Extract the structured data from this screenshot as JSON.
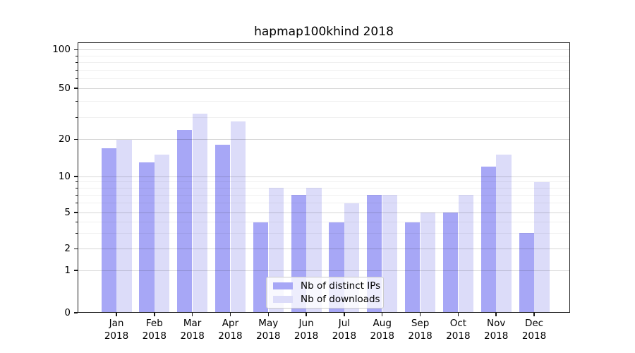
{
  "title": "hapmap100khind 2018",
  "chart_data": {
    "type": "bar",
    "categories": [
      "Jan",
      "Feb",
      "Mar",
      "Apr",
      "May",
      "Jun",
      "Jul",
      "Aug",
      "Sep",
      "Oct",
      "Nov",
      "Dec"
    ],
    "year": "2018",
    "series": [
      {
        "name": "Nb of distinct IPs",
        "color": "#a7a7f6",
        "values": [
          17,
          13,
          24,
          18,
          4,
          7,
          4,
          7,
          4,
          5,
          12,
          3
        ]
      },
      {
        "name": "Nb of downloads",
        "color": "#dcdcf9",
        "values": [
          20,
          15,
          32,
          28,
          8,
          8,
          6,
          7,
          5,
          7,
          15,
          9
        ]
      }
    ],
    "yticks_major": [
      100,
      50,
      20,
      10,
      5,
      2,
      1,
      0
    ],
    "yticks_minor": [
      90,
      80,
      70,
      60,
      40,
      30,
      9,
      8,
      7,
      6,
      4,
      3
    ],
    "ylim": [
      0,
      120
    ],
    "yscale": "log-like with linear 0-1 segment",
    "grid": "horizontal major and minor",
    "legend_position": "lower center inside plot",
    "axis_color": "#1a1a1a"
  }
}
